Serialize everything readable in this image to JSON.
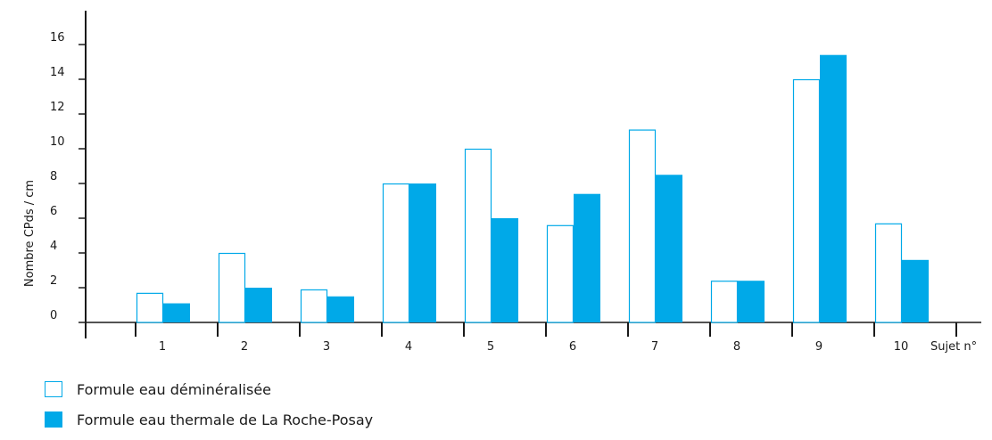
{
  "chart_data": {
    "type": "bar",
    "categories": [
      "1",
      "2",
      "3",
      "4",
      "5",
      "6",
      "7",
      "8",
      "9",
      "10"
    ],
    "series": [
      {
        "name": "Formule eau déminéralisée",
        "values": [
          1.7,
          4.0,
          1.9,
          8.0,
          10.0,
          5.6,
          11.1,
          2.4,
          14.0,
          5.7
        ],
        "color": "#00a9e8",
        "filled": false
      },
      {
        "name": "Formule eau thermale de La Roche-Posay",
        "values": [
          1.1,
          2.0,
          1.5,
          8.0,
          6.0,
          7.4,
          8.5,
          2.4,
          15.4,
          3.6
        ],
        "color": "#00a9e8",
        "filled": true
      }
    ],
    "yticks": [
      "0",
      "2",
      "4",
      "6",
      "8",
      "10",
      "12",
      "14",
      "16"
    ],
    "ylim": [
      0,
      16
    ],
    "ylabel": "Nombre CPds / cm",
    "xlabel": "Sujet n°",
    "legend_position": "bottom-left",
    "grid": false
  }
}
